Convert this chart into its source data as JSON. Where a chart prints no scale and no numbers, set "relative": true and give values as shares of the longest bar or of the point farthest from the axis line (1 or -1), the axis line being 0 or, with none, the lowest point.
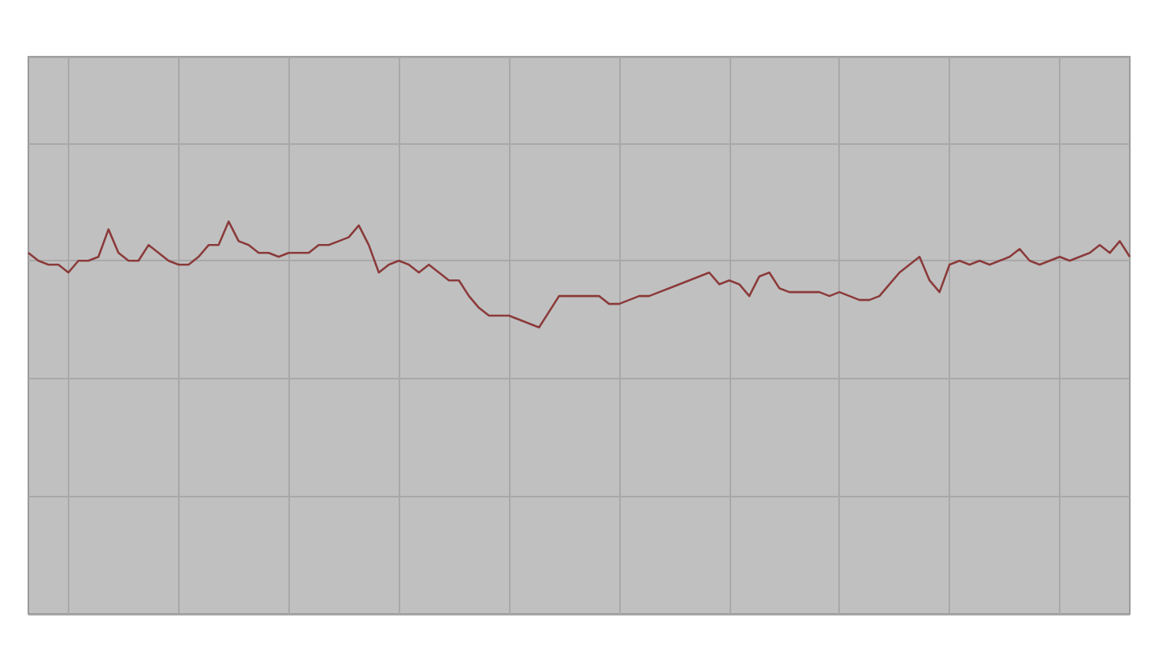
{
  "chart_data": {
    "type": "line",
    "relative": true,
    "grid": true,
    "marker": "none",
    "line_style": "solid",
    "categories": [
      null,
      null,
      null,
      null,
      null,
      null,
      null,
      null,
      null,
      null,
      null,
      null,
      null,
      null,
      null,
      null,
      null,
      null,
      null,
      null,
      null,
      null,
      null,
      null,
      null,
      null,
      null,
      null,
      null,
      null,
      null,
      null,
      null,
      null,
      null,
      null,
      null,
      null,
      null,
      null,
      null,
      null,
      null,
      null,
      null,
      null,
      null,
      null,
      null,
      null,
      null,
      null,
      null,
      null,
      null,
      null,
      null,
      null,
      null,
      null,
      null,
      null,
      null,
      null,
      null,
      null,
      null,
      null,
      null,
      null,
      null,
      null,
      null,
      null,
      null,
      null,
      null,
      null,
      null,
      null,
      null,
      null,
      null,
      null,
      null,
      null,
      null,
      null,
      null,
      null,
      null,
      null,
      null,
      null,
      null,
      null,
      null,
      null,
      null,
      null,
      null,
      null,
      null,
      null,
      null,
      null,
      null,
      null,
      null,
      null,
      null
    ],
    "series": [
      {
        "color": "#8b3a3a",
        "values": [
          0.92,
          0.9,
          0.89,
          0.89,
          0.87,
          0.9,
          0.9,
          0.91,
          0.98,
          0.92,
          0.9,
          0.9,
          0.94,
          0.92,
          0.9,
          0.89,
          0.89,
          0.91,
          0.94,
          0.94,
          1.0,
          0.95,
          0.94,
          0.92,
          0.92,
          0.91,
          0.92,
          0.92,
          0.92,
          0.94,
          0.94,
          0.95,
          0.96,
          0.99,
          0.94,
          0.87,
          0.89,
          0.9,
          0.89,
          0.87,
          0.89,
          0.87,
          0.85,
          0.85,
          0.81,
          0.78,
          0.76,
          0.76,
          0.76,
          0.75,
          0.74,
          0.73,
          0.77,
          0.81,
          0.81,
          0.81,
          0.81,
          0.81,
          0.79,
          0.79,
          0.8,
          0.81,
          0.81,
          0.82,
          0.83,
          0.84,
          0.85,
          0.86,
          0.87,
          0.84,
          0.85,
          0.84,
          0.81,
          0.86,
          0.87,
          0.83,
          0.82,
          0.82,
          0.82,
          0.82,
          0.81,
          0.82,
          0.81,
          0.8,
          0.8,
          0.81,
          0.84,
          0.87,
          0.89,
          0.91,
          0.85,
          0.82,
          0.89,
          0.9,
          0.89,
          0.9,
          0.89,
          0.9,
          0.91,
          0.93,
          0.9,
          0.89,
          0.9,
          0.91,
          0.9,
          0.91,
          0.92,
          0.94,
          0.92,
          0.95,
          0.91
        ]
      }
    ]
  }
}
